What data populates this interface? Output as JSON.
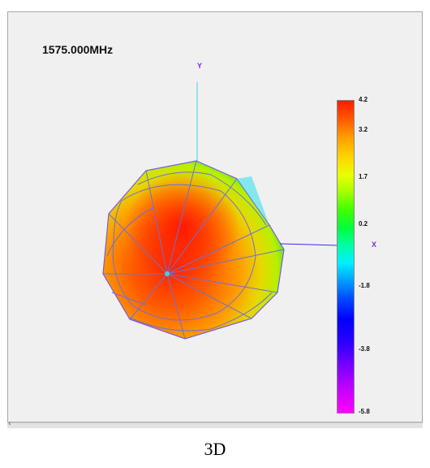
{
  "viewer": {
    "frequency_label": "1575.000MHz",
    "axis_y_label": "Y",
    "axis_x_label": "X"
  },
  "colorbar": {
    "ticks": [
      "4.2",
      "3.2",
      "1.7",
      "0.2",
      "-1.8",
      "-3.8",
      "-5.8"
    ],
    "tick_values": [
      4.2,
      3.2,
      1.7,
      0.2,
      -1.8,
      -3.8,
      -5.8
    ],
    "range": [
      -5.8,
      4.2
    ]
  },
  "scrollbar": {
    "arrow_icon": "chevron-left-icon"
  },
  "caption": "3D",
  "colors": {
    "y_axis": "#40d0e0",
    "x_axis": "#3030e0",
    "mesh": "#6d70d8",
    "axis_label": "#7a2ad6"
  }
}
